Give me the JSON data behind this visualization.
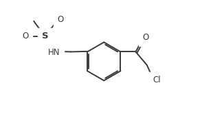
{
  "bg_color": "#ffffff",
  "line_color": "#3a3a3a",
  "text_color": "#3a3a3a",
  "line_width": 1.4,
  "font_size": 8.5,
  "figsize": [
    3.1,
    1.85
  ],
  "dpi": 100,
  "xlim": [
    0.0,
    10.5
  ],
  "ylim": [
    0.5,
    6.2
  ]
}
